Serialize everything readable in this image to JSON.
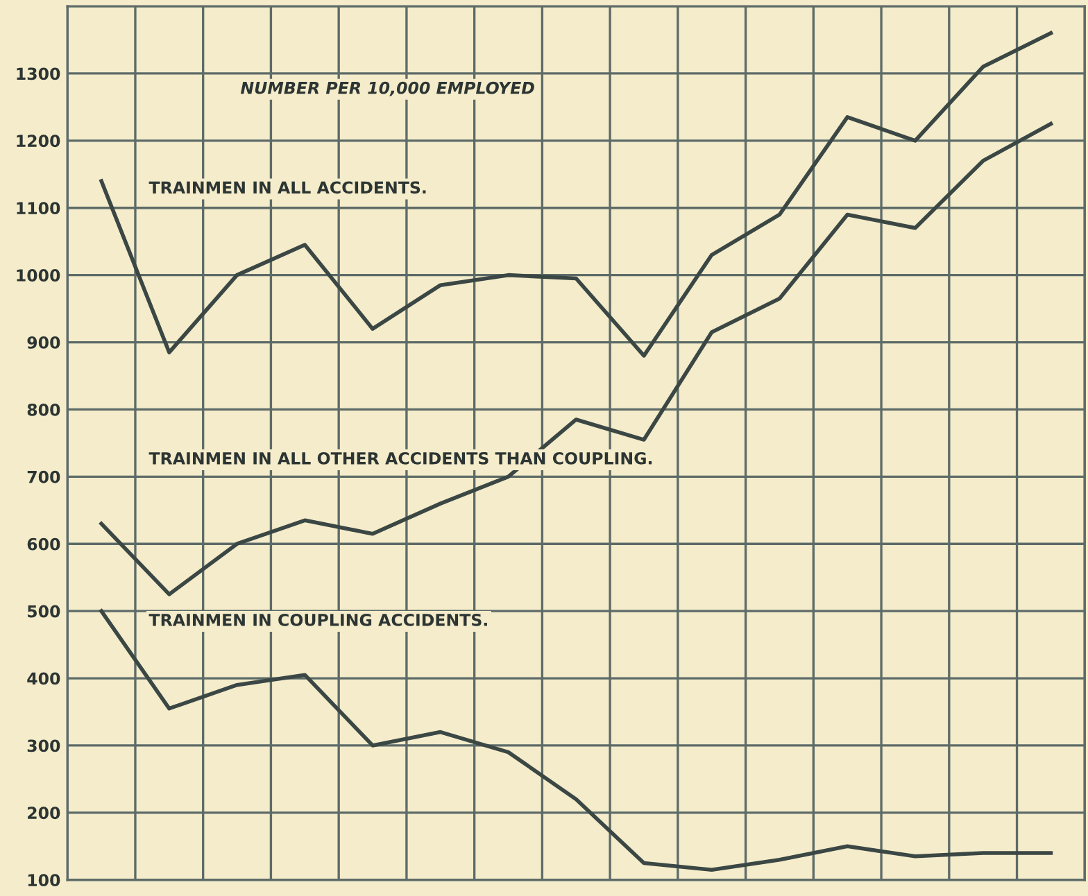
{
  "chart_data": {
    "type": "line",
    "title": "NUMBER PER 10,000 EMPLOYED",
    "categories": [
      null,
      null,
      null,
      null,
      null,
      null,
      null,
      null,
      null,
      null,
      null,
      null,
      null,
      null,
      null
    ],
    "series": [
      {
        "name": "TRAINMEN IN ALL ACCIDENTS.",
        "color": "#3b4744",
        "values": [
          1140,
          885,
          1000,
          1045,
          920,
          985,
          1000,
          995,
          880,
          1030,
          1090,
          1235,
          1200,
          1310,
          1360
        ]
      },
      {
        "name": "TRAINMEN IN ALL OTHER ACCIDENTS THAN COUPLING.",
        "color": "#3b4744",
        "values": [
          630,
          525,
          600,
          635,
          615,
          660,
          700,
          785,
          755,
          915,
          965,
          1090,
          1070,
          1170,
          1225
        ]
      },
      {
        "name": "TRAINMEN IN COUPLING ACCIDENTS.",
        "color": "#3b4744",
        "values": [
          500,
          355,
          390,
          405,
          300,
          320,
          290,
          220,
          125,
          115,
          130,
          150,
          135,
          140,
          140
        ]
      }
    ],
    "ylim": [
      100,
      1400
    ],
    "yticks": [
      100,
      200,
      300,
      400,
      500,
      600,
      700,
      800,
      900,
      1000,
      1100,
      1200,
      1300
    ],
    "grid": true,
    "legend": false,
    "tick_labels": "y",
    "marker": "none",
    "line_style": "solid"
  }
}
